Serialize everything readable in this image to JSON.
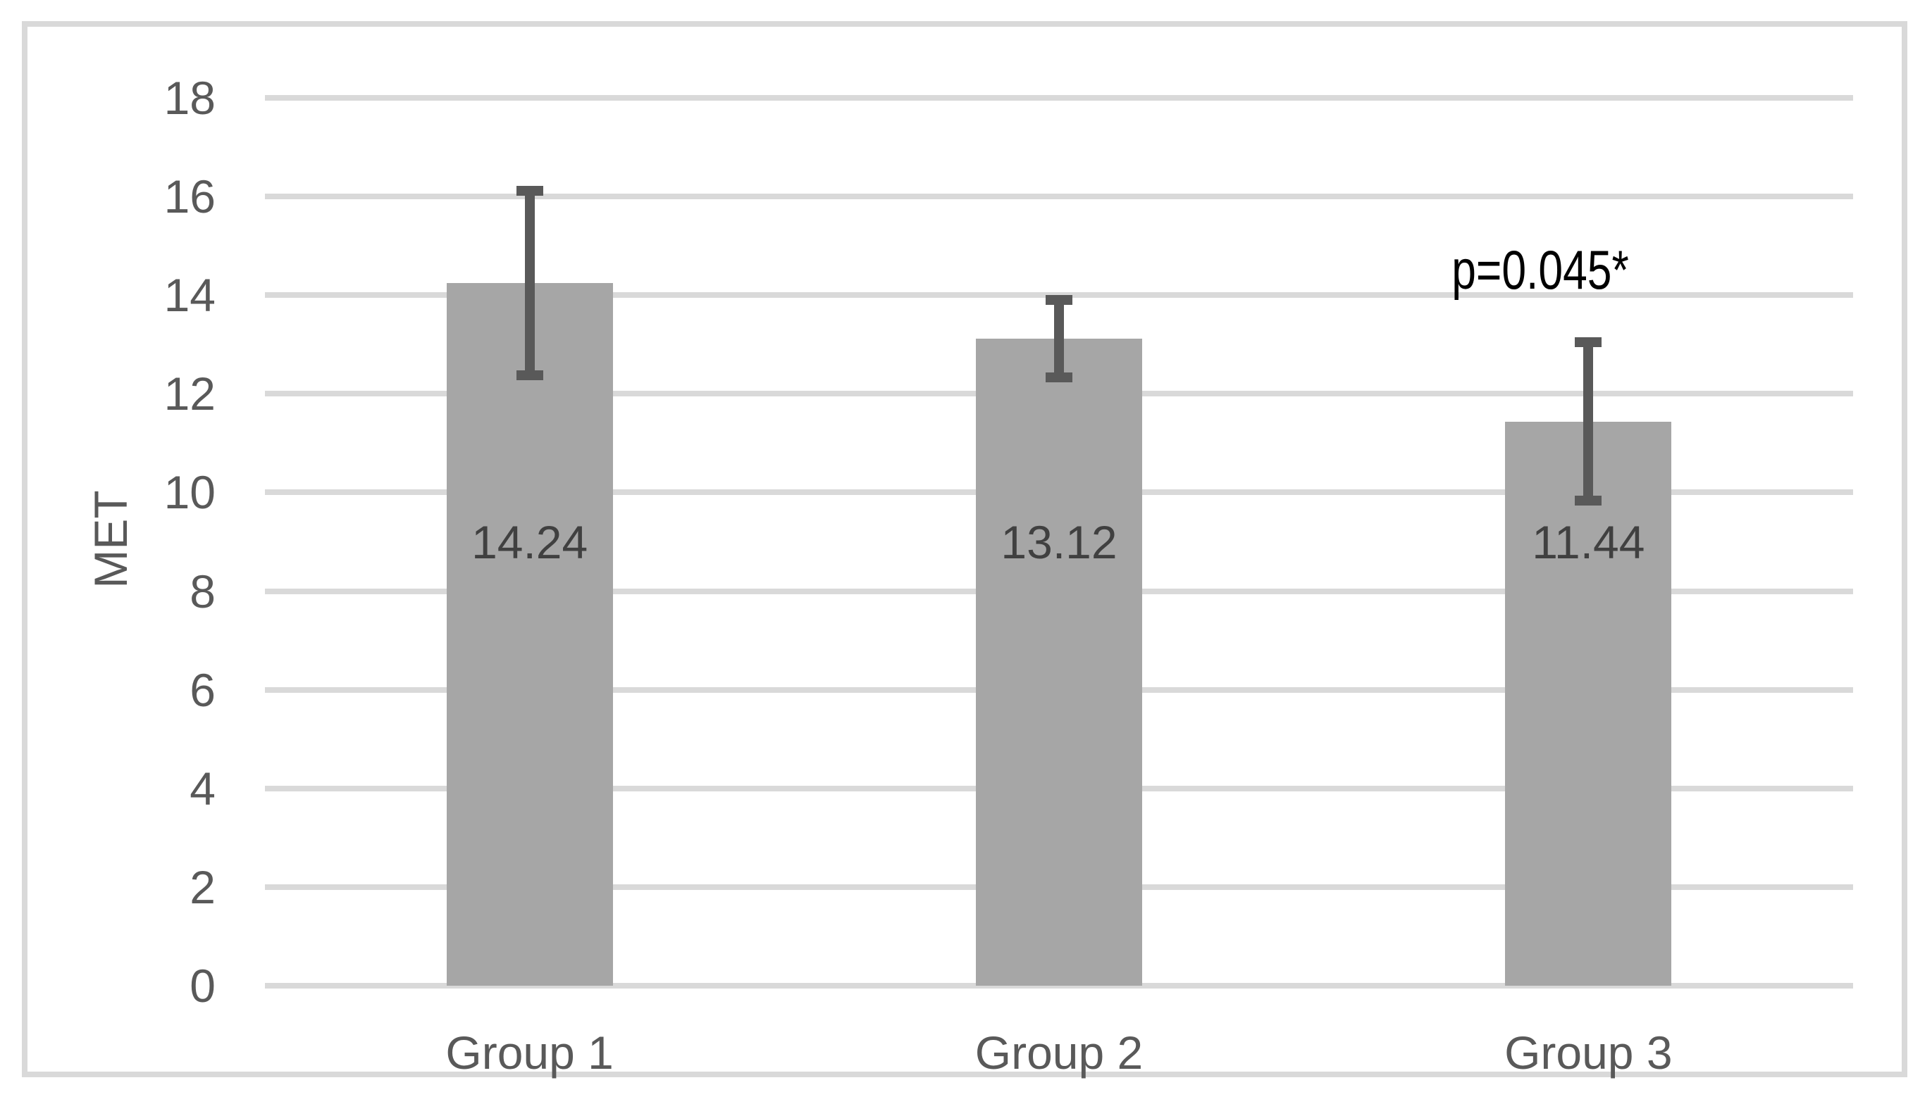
{
  "chart_data": {
    "type": "bar",
    "title": "",
    "categories": [
      "Group 1",
      "Group 2",
      "Group 3"
    ],
    "values": [
      14.24,
      13.12,
      11.44
    ],
    "value_labels": [
      "14.24",
      "13.12",
      "11.44"
    ],
    "error_bars": {
      "plus": [
        1.87,
        0.78,
        1.6
      ],
      "minus": [
        1.87,
        0.78,
        1.6
      ]
    },
    "xlabel": "",
    "ylabel": "MET",
    "ylim": [
      0,
      18
    ],
    "ytick_step": 2,
    "yticks": [
      0,
      2,
      4,
      6,
      8,
      10,
      12,
      14,
      16,
      18
    ],
    "grid": "horizontal-gridlines-on",
    "legend": "none",
    "annotations": [
      {
        "text": "p=0.045*",
        "anchor_category": "Group 3",
        "position": "above-bar"
      }
    ]
  },
  "colors": {
    "bar_fill": "#a6a6a6",
    "error_bar": "#595959",
    "gridline": "#d9d9d9",
    "frame_border": "#d9d9d9",
    "axis_text": "#595959",
    "value_label_text": "#404040",
    "annotation_text": "#000000",
    "background": "#ffffff"
  }
}
